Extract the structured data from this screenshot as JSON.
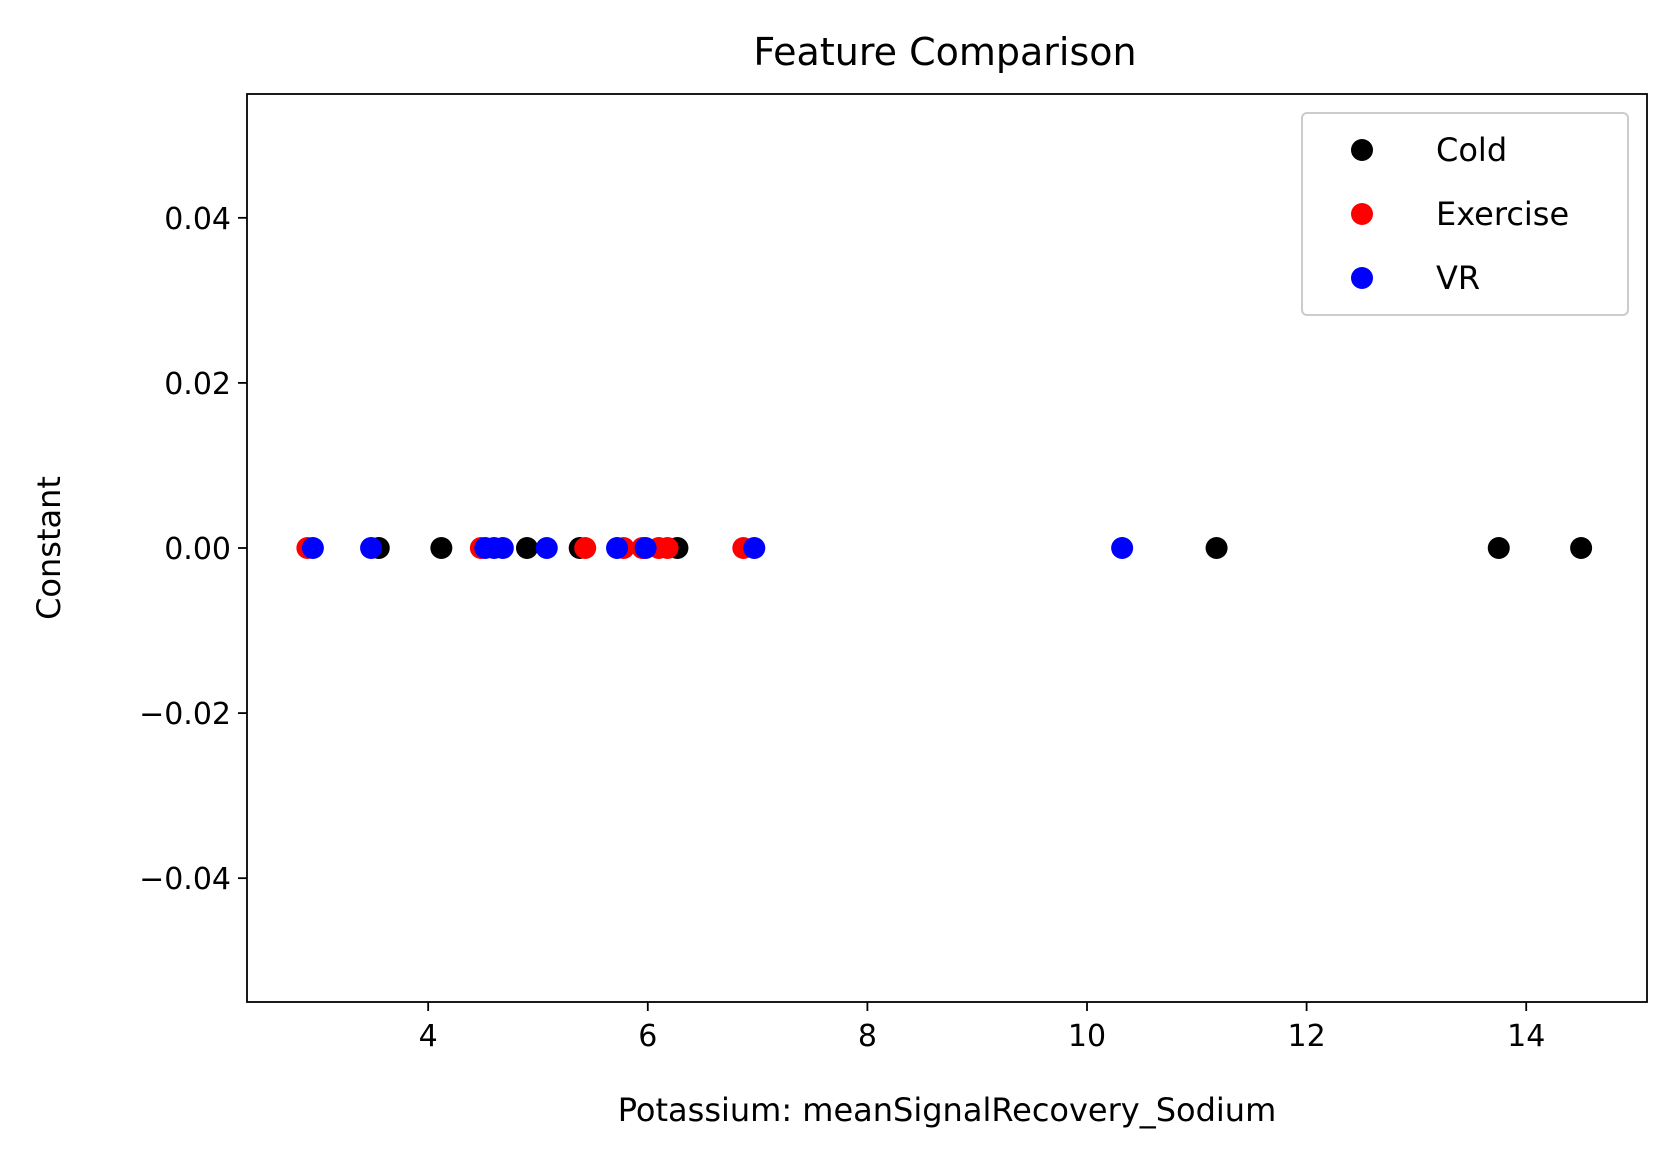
{
  "chart_data": {
    "type": "scatter",
    "title": "Feature Comparison",
    "xlabel": "Potassium: meanSignalRecovery_Sodium",
    "ylabel": "Constant",
    "xlim": [
      2.35,
      15.1
    ],
    "ylim": [
      -0.055,
      0.055
    ],
    "xticks": [
      4,
      6,
      8,
      10,
      12,
      14
    ],
    "xtick_labels": [
      "4",
      "6",
      "8",
      "10",
      "12",
      "14"
    ],
    "yticks": [
      -0.04,
      -0.02,
      0.0,
      0.02,
      0.04
    ],
    "ytick_labels": [
      "−0.04",
      "−0.02",
      "0.00",
      "0.02",
      "0.04"
    ],
    "grid": false,
    "legend_position": "top-right",
    "series": [
      {
        "name": "Cold",
        "color": "#000000",
        "x": [
          3.55,
          4.12,
          4.9,
          5.38,
          6.27,
          11.18,
          13.75,
          14.5
        ],
        "y": [
          0,
          0,
          0,
          0,
          0,
          0,
          0,
          0
        ]
      },
      {
        "name": "Exercise",
        "color": "#ff0000",
        "x": [
          2.9,
          4.48,
          5.43,
          5.78,
          5.95,
          6.1,
          6.18,
          6.87
        ],
        "y": [
          0,
          0,
          0,
          0,
          0,
          0,
          0,
          0
        ]
      },
      {
        "name": "VR",
        "color": "#0000ff",
        "x": [
          2.95,
          3.48,
          4.52,
          4.6,
          4.68,
          5.08,
          5.72,
          5.98,
          6.97,
          10.32
        ],
        "y": [
          0,
          0,
          0,
          0,
          0,
          0,
          0,
          0,
          0,
          0
        ]
      }
    ]
  }
}
